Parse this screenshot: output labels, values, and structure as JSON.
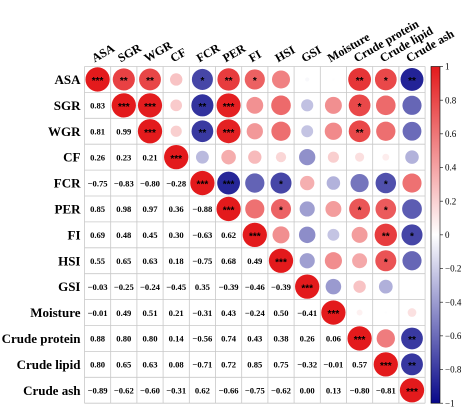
{
  "chart_data": {
    "type": "heatmap",
    "variables": [
      "ASA",
      "SGR",
      "WGR",
      "CF",
      "FCR",
      "PER",
      "FI",
      "HSI",
      "GSI",
      "Moisture",
      "Crude protein",
      "Crude lipid",
      "Crude ash"
    ],
    "lower_values": [
      [],
      [
        0.83
      ],
      [
        0.81,
        0.99
      ],
      [
        0.26,
        0.23,
        0.21
      ],
      [
        -0.75,
        -0.83,
        -0.8,
        -0.28
      ],
      [
        0.85,
        0.98,
        0.97,
        0.36,
        -0.88
      ],
      [
        0.69,
        0.48,
        0.45,
        0.3,
        -0.63,
        0.62
      ],
      [
        0.55,
        0.65,
        0.63,
        0.18,
        -0.75,
        0.68,
        0.49
      ],
      [
        -0.03,
        -0.25,
        -0.24,
        -0.45,
        0.35,
        -0.39,
        -0.46,
        -0.39
      ],
      [
        -0.01,
        0.49,
        0.51,
        0.21,
        -0.31,
        0.43,
        -0.24,
        0.5,
        -0.41
      ],
      [
        0.88,
        0.8,
        0.8,
        0.14,
        -0.56,
        0.74,
        0.43,
        0.38,
        0.26,
        0.06
      ],
      [
        0.8,
        0.65,
        0.63,
        0.08,
        -0.71,
        0.72,
        0.85,
        0.75,
        -0.32,
        -0.01,
        0.57
      ],
      [
        -0.89,
        -0.62,
        -0.6,
        -0.31,
        0.62,
        -0.66,
        -0.75,
        -0.62,
        0.0,
        0.13,
        -0.8,
        -0.81
      ]
    ],
    "value_labels": [
      [],
      [
        "0.83"
      ],
      [
        "0.81",
        "0.99"
      ],
      [
        "0.26",
        "0.23",
        "0.21"
      ],
      [
        "−0.75",
        "−0.83",
        "−0.80",
        "−0.28"
      ],
      [
        "0.85",
        "0.98",
        "0.97",
        "0.36",
        "−0.88"
      ],
      [
        "0.69",
        "0.48",
        "0.45",
        "0.30",
        "−0.63",
        "0.62"
      ],
      [
        "0.55",
        "0.65",
        "0.63",
        "0.18",
        "−0.75",
        "0.68",
        "0.49"
      ],
      [
        "−0.03",
        "−0.25",
        "−0.24",
        "−0.45",
        "0.35",
        "−0.39",
        "−0.46",
        "−0.39"
      ],
      [
        "−0.01",
        "0.49",
        "0.51",
        "0.21",
        "−0.31",
        "0.43",
        "−0.24",
        "0.50",
        "−0.41"
      ],
      [
        "0.88",
        "0.80",
        "0.80",
        "0.14",
        "−0.56",
        "0.74",
        "0.43",
        "0.38",
        "0.26",
        "0.06"
      ],
      [
        "0.80",
        "0.65",
        "0.63",
        "0.08",
        "−0.71",
        "0.72",
        "0.85",
        "0.75",
        "−0.32",
        "−0.01",
        "0.57"
      ],
      [
        "−0.89",
        "−0.62",
        "−0.60",
        "−0.31",
        "0.62",
        "−0.66",
        "−0.75",
        "−0.62",
        "0.00",
        "0.13",
        "−0.80",
        "−0.81"
      ]
    ],
    "significance": [
      [
        "***",
        "**",
        "**",
        "",
        "*",
        "**",
        "*",
        "",
        "",
        "",
        "**",
        "*",
        "**"
      ],
      [
        "**",
        "***",
        "***",
        "",
        "**",
        "***",
        "",
        "",
        "",
        "",
        "*",
        "",
        ""
      ],
      [
        "**",
        "***",
        "***",
        "",
        "**",
        "***",
        "",
        "",
        "",
        "",
        "**",
        "",
        ""
      ],
      [
        "",
        "",
        "",
        "***",
        "",
        "",
        "",
        "",
        "",
        "",
        "",
        "",
        ""
      ],
      [
        "*",
        "**",
        "**",
        "",
        "***",
        "***",
        "",
        "*",
        "",
        "",
        "",
        "*",
        ""
      ],
      [
        "**",
        "***",
        "***",
        "",
        "***",
        "***",
        "",
        "*",
        "",
        "",
        "*",
        "*",
        ""
      ],
      [
        "*",
        "",
        "",
        "",
        "",
        "",
        "***",
        "",
        "",
        "",
        "",
        "**",
        "*"
      ],
      [
        "",
        "",
        "",
        "",
        "*",
        "*",
        "",
        "***",
        "",
        "",
        "",
        "*",
        ""
      ],
      [
        "",
        "",
        "",
        "",
        "",
        "",
        "",
        "",
        "***",
        "",
        "",
        "",
        ""
      ],
      [
        "",
        "",
        "",
        "",
        "",
        "",
        "",
        "",
        "",
        "***",
        "",
        "",
        ""
      ],
      [
        "**",
        "*",
        "**",
        "",
        "",
        "*",
        "",
        "",
        "",
        "",
        "***",
        "",
        "**"
      ],
      [
        "*",
        "",
        "",
        "",
        "*",
        "*",
        "**",
        "*",
        "",
        "",
        "",
        "***",
        "**"
      ],
      [
        "**",
        "",
        "",
        "",
        "",
        "",
        "*",
        "",
        "",
        "",
        "**",
        "**",
        "***"
      ]
    ],
    "colorbar": {
      "range": [
        -1,
        1
      ],
      "ticks": [
        "1",
        "0.8",
        "0.6",
        "0.4",
        "0.2",
        "0",
        "−0.2",
        "−0.4",
        "−0.6",
        "−0.8",
        "−1"
      ],
      "colors": {
        "positive": "#e31a1c",
        "neutral": "#ffffff",
        "negative": "#08088a"
      }
    },
    "grid": true
  }
}
